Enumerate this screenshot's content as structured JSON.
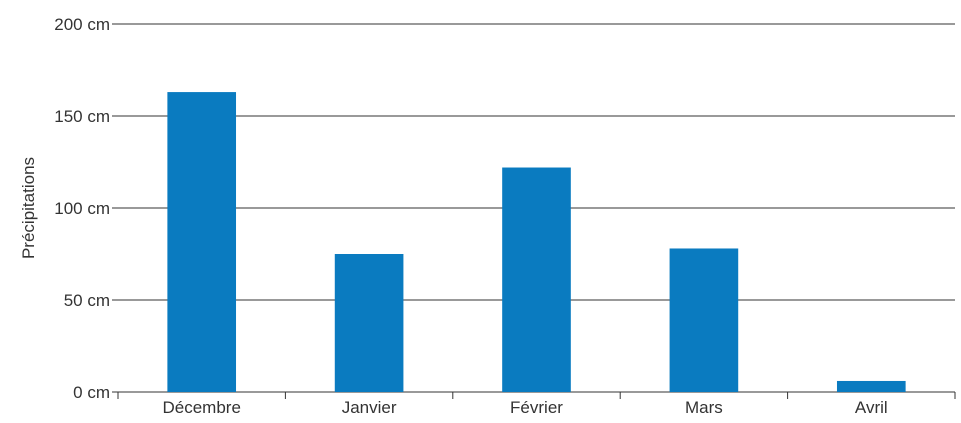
{
  "chart_data": {
    "type": "bar",
    "title": "",
    "xlabel": "",
    "ylabel": "Précipitations",
    "categories": [
      "Décembre",
      "Janvier",
      "Février",
      "Mars",
      "Avril"
    ],
    "values": [
      163,
      75,
      122,
      78,
      6
    ],
    "ylim": [
      0,
      200
    ],
    "yticks": [
      0,
      50,
      100,
      150,
      200
    ],
    "ytick_labels": [
      "0 cm",
      "50 cm",
      "100 cm",
      "150 cm",
      "200 cm"
    ],
    "grid": "horizontal",
    "legend": "none",
    "colors": {
      "bar": "#0a7bc0",
      "grid": "#333333",
      "text": "#333333"
    }
  }
}
